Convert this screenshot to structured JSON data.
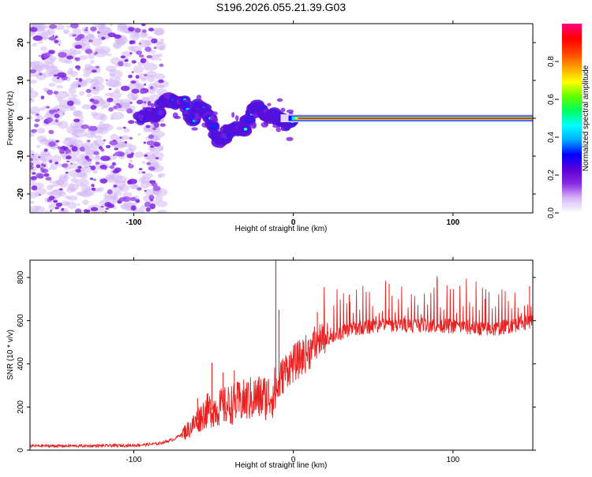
{
  "title": "S196.2026.055.21.39.G03",
  "chart_data": [
    {
      "type": "heatmap",
      "xlabel": "Height of straight line (km)",
      "ylabel": "Frequency (Hz)",
      "xlim": [
        -165,
        150
      ],
      "ylim": [
        -25,
        25
      ],
      "xticks": [
        -100,
        0,
        100
      ],
      "yticks": [
        -20,
        -10,
        0,
        10,
        20
      ],
      "colorbar": {
        "label": "Normalized spectral amplitude",
        "range": [
          0,
          1
        ],
        "ticks": [
          0.0,
          0.2,
          0.4,
          0.6,
          0.8
        ],
        "colors": [
          "#ffffff",
          "#d8b8f8",
          "#8a2be2",
          "#5a00d8",
          "#0000ff",
          "#00aaff",
          "#00ffff",
          "#00ff60",
          "#60ff00",
          "#ffff00",
          "#ffa000",
          "#ff4000",
          "#ff0000",
          "#ff0080"
        ]
      },
      "features": {
        "noise_region_x": [
          -165,
          -82
        ],
        "signal_onset_x": -100,
        "steady_line_from_x": 0,
        "steady_line_frequency": 0
      },
      "ridge": [
        [
          -96,
          0
        ],
        [
          -90,
          1
        ],
        [
          -86,
          1
        ],
        [
          -80,
          5
        ],
        [
          -74,
          4
        ],
        [
          -68,
          5
        ],
        [
          -63,
          -1
        ],
        [
          -60,
          3
        ],
        [
          -56,
          2
        ],
        [
          -52,
          0
        ],
        [
          -48,
          -5
        ],
        [
          -44,
          -6
        ],
        [
          -40,
          -3
        ],
        [
          -36,
          -2
        ],
        [
          -32,
          -4
        ],
        [
          -28,
          0
        ],
        [
          -24,
          3
        ],
        [
          -20,
          2
        ],
        [
          -16,
          1
        ],
        [
          -12,
          1
        ],
        [
          -8,
          0
        ],
        [
          -4,
          -2
        ],
        [
          0,
          -1
        ],
        [
          4,
          0
        ],
        [
          10,
          0
        ],
        [
          20,
          0
        ],
        [
          40,
          0
        ],
        [
          80,
          0
        ],
        [
          120,
          0
        ],
        [
          150,
          0
        ]
      ]
    },
    {
      "type": "line",
      "xlabel": "Height of straight line (km)",
      "ylabel": "SNR (10 * v/v)",
      "xlim": [
        -165,
        150
      ],
      "ylim": [
        0,
        880
      ],
      "xticks": [
        -100,
        0,
        100
      ],
      "yticks": [
        0,
        200,
        400,
        600,
        800
      ],
      "color": "#e82020",
      "baseline_points": [
        [
          -165,
          20
        ],
        [
          -130,
          20
        ],
        [
          -100,
          22
        ],
        [
          -85,
          30
        ],
        [
          -75,
          50
        ],
        [
          -65,
          100
        ],
        [
          -55,
          180
        ],
        [
          -45,
          200
        ],
        [
          -35,
          220
        ],
        [
          -25,
          240
        ],
        [
          -15,
          250
        ],
        [
          -10,
          280
        ],
        [
          -8,
          330
        ],
        [
          -4,
          380
        ],
        [
          0,
          400
        ],
        [
          5,
          430
        ],
        [
          10,
          460
        ],
        [
          20,
          510
        ],
        [
          30,
          545
        ],
        [
          40,
          565
        ],
        [
          55,
          580
        ],
        [
          70,
          580
        ],
        [
          85,
          580
        ],
        [
          100,
          575
        ],
        [
          115,
          565
        ],
        [
          125,
          560
        ],
        [
          135,
          575
        ],
        [
          145,
          590
        ],
        [
          150,
          600
        ]
      ],
      "spikes": [
        {
          "x": -60,
          "value": 240
        },
        {
          "x": -51,
          "value": 405
        },
        {
          "x": -44,
          "value": 360
        },
        {
          "x": -37,
          "value": 370
        },
        {
          "x": -11,
          "value": 880
        },
        {
          "x": -9,
          "value": 650
        },
        {
          "x": 15,
          "value": 640
        },
        {
          "x": 35,
          "value": 720
        },
        {
          "x": 60,
          "value": 770
        },
        {
          "x": 90,
          "value": 805
        },
        {
          "x": 120,
          "value": 700
        },
        {
          "x": 148,
          "value": 760
        }
      ]
    }
  ]
}
